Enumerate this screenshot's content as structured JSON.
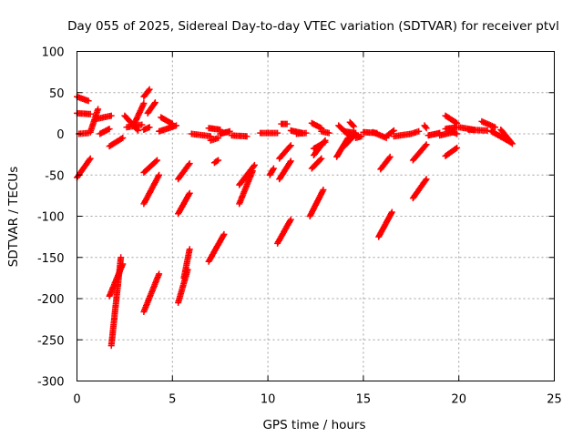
{
  "chart_data": {
    "type": "scatter",
    "title": "Day 055 of 2025, Sidereal Day-to-day VTEC variation (SDTVAR) for receiver ptvl",
    "xlabel": "GPS time / hours",
    "ylabel": "SDTVAR / TECUs",
    "xlim": [
      0,
      25
    ],
    "ylim": [
      -300,
      100
    ],
    "xticks": [
      0,
      5,
      10,
      15,
      20,
      25
    ],
    "yticks": [
      -300,
      -250,
      -200,
      -150,
      -100,
      -50,
      0,
      50,
      100
    ],
    "grid": true,
    "marker": "plus",
    "color": "#ff0000",
    "segments": [
      {
        "x0": 0.0,
        "y0": -53,
        "x1": 0.7,
        "y1": -30
      },
      {
        "x0": 0.0,
        "y0": 45,
        "x1": 0.6,
        "y1": 40
      },
      {
        "x0": 0.0,
        "y0": 25,
        "x1": 0.7,
        "y1": 24
      },
      {
        "x0": 0.1,
        "y0": 0,
        "x1": 0.6,
        "y1": 1
      },
      {
        "x0": 0.7,
        "y0": 2,
        "x1": 1.1,
        "y1": 30
      },
      {
        "x0": 1.0,
        "y0": 18,
        "x1": 1.8,
        "y1": 22
      },
      {
        "x0": 1.2,
        "y0": 0,
        "x1": 1.7,
        "y1": 6
      },
      {
        "x0": 1.7,
        "y0": -15,
        "x1": 2.4,
        "y1": -5
      },
      {
        "x0": 1.7,
        "y0": -197,
        "x1": 2.4,
        "y1": -158
      },
      {
        "x0": 1.8,
        "y0": -257,
        "x1": 2.3,
        "y1": -150
      },
      {
        "x0": 2.5,
        "y0": 22,
        "x1": 3.2,
        "y1": 4
      },
      {
        "x0": 2.6,
        "y0": 8,
        "x1": 3.4,
        "y1": 11
      },
      {
        "x0": 3.0,
        "y0": 12,
        "x1": 3.5,
        "y1": 37
      },
      {
        "x0": 3.5,
        "y0": 45,
        "x1": 3.8,
        "y1": 54
      },
      {
        "x0": 3.5,
        "y0": 5,
        "x1": 3.8,
        "y1": 8
      },
      {
        "x0": 3.5,
        "y0": -216,
        "x1": 4.3,
        "y1": -170
      },
      {
        "x0": 3.5,
        "y0": -85,
        "x1": 4.3,
        "y1": -50
      },
      {
        "x0": 3.5,
        "y0": -47,
        "x1": 4.2,
        "y1": -32
      },
      {
        "x0": 3.7,
        "y0": 25,
        "x1": 4.1,
        "y1": 38
      },
      {
        "x0": 4.3,
        "y0": 3,
        "x1": 5.2,
        "y1": 10
      },
      {
        "x0": 4.4,
        "y0": 20,
        "x1": 5.0,
        "y1": 12
      },
      {
        "x0": 5.3,
        "y0": -205,
        "x1": 5.8,
        "y1": -165
      },
      {
        "x0": 5.6,
        "y0": -175,
        "x1": 5.9,
        "y1": -140
      },
      {
        "x0": 5.3,
        "y0": -97,
        "x1": 5.9,
        "y1": -72
      },
      {
        "x0": 5.3,
        "y0": -55,
        "x1": 5.9,
        "y1": -36
      },
      {
        "x0": 6.0,
        "y0": 0,
        "x1": 7.0,
        "y1": -3
      },
      {
        "x0": 6.9,
        "y0": -155,
        "x1": 7.7,
        "y1": -122
      },
      {
        "x0": 6.9,
        "y0": 7,
        "x1": 7.5,
        "y1": 5
      },
      {
        "x0": 7.0,
        "y0": -8,
        "x1": 7.4,
        "y1": -5
      },
      {
        "x0": 7.2,
        "y0": -35,
        "x1": 7.4,
        "y1": -32
      },
      {
        "x0": 7.5,
        "y0": 0,
        "x1": 8.0,
        "y1": 3
      },
      {
        "x0": 8.1,
        "y0": -2,
        "x1": 8.9,
        "y1": -3
      },
      {
        "x0": 8.5,
        "y0": -85,
        "x1": 9.2,
        "y1": -45
      },
      {
        "x0": 8.5,
        "y0": -62,
        "x1": 9.3,
        "y1": -38
      },
      {
        "x0": 9.6,
        "y0": 1,
        "x1": 10.5,
        "y1": 1
      },
      {
        "x0": 10.1,
        "y0": -50,
        "x1": 10.3,
        "y1": -42
      },
      {
        "x0": 10.5,
        "y0": -133,
        "x1": 11.2,
        "y1": -104
      },
      {
        "x0": 10.6,
        "y0": -55,
        "x1": 11.2,
        "y1": -33
      },
      {
        "x0": 10.6,
        "y0": -30,
        "x1": 11.2,
        "y1": -14
      },
      {
        "x0": 10.7,
        "y0": 12,
        "x1": 11.0,
        "y1": 12
      },
      {
        "x0": 11.2,
        "y0": 4,
        "x1": 11.8,
        "y1": 1
      },
      {
        "x0": 11.5,
        "y0": 0,
        "x1": 12.0,
        "y1": 1
      },
      {
        "x0": 12.2,
        "y0": -100,
        "x1": 12.9,
        "y1": -68
      },
      {
        "x0": 12.3,
        "y0": -42,
        "x1": 12.8,
        "y1": -30
      },
      {
        "x0": 12.3,
        "y0": 13,
        "x1": 12.8,
        "y1": 7
      },
      {
        "x0": 12.4,
        "y0": -26,
        "x1": 13.0,
        "y1": -8
      },
      {
        "x0": 12.4,
        "y0": -18,
        "x1": 13.0,
        "y1": -10
      },
      {
        "x0": 12.8,
        "y0": 3,
        "x1": 13.2,
        "y1": 1
      },
      {
        "x0": 13.6,
        "y0": -28,
        "x1": 14.2,
        "y1": -5
      },
      {
        "x0": 13.7,
        "y0": 10,
        "x1": 14.3,
        "y1": -3
      },
      {
        "x0": 14.0,
        "y0": 3,
        "x1": 14.6,
        "y1": 1
      },
      {
        "x0": 14.0,
        "y0": -15,
        "x1": 14.6,
        "y1": 0
      },
      {
        "x0": 14.3,
        "y0": 14,
        "x1": 14.5,
        "y1": 9
      },
      {
        "x0": 14.6,
        "y0": -5,
        "x1": 14.9,
        "y1": -3
      },
      {
        "x0": 15.0,
        "y0": 2,
        "x1": 15.7,
        "y1": 1
      },
      {
        "x0": 15.5,
        "y0": 2,
        "x1": 16.2,
        "y1": -5
      },
      {
        "x0": 15.8,
        "y0": -125,
        "x1": 16.5,
        "y1": -95
      },
      {
        "x0": 15.9,
        "y0": -43,
        "x1": 16.4,
        "y1": -28
      },
      {
        "x0": 16.2,
        "y0": -3,
        "x1": 16.6,
        "y1": 4
      },
      {
        "x0": 16.6,
        "y0": -3,
        "x1": 17.5,
        "y1": 0
      },
      {
        "x0": 17.5,
        "y0": 0,
        "x1": 17.9,
        "y1": 3
      },
      {
        "x0": 17.6,
        "y0": -78,
        "x1": 18.3,
        "y1": -55
      },
      {
        "x0": 17.6,
        "y0": -32,
        "x1": 18.3,
        "y1": -13
      },
      {
        "x0": 18.2,
        "y0": 10,
        "x1": 18.3,
        "y1": 7
      },
      {
        "x0": 18.4,
        "y0": -2,
        "x1": 19.0,
        "y1": 1
      },
      {
        "x0": 19.0,
        "y0": -2,
        "x1": 19.7,
        "y1": 2
      },
      {
        "x0": 19.3,
        "y0": 22,
        "x1": 19.9,
        "y1": 13
      },
      {
        "x0": 19.3,
        "y0": 6,
        "x1": 19.9,
        "y1": 8
      },
      {
        "x0": 19.3,
        "y0": -27,
        "x1": 19.9,
        "y1": -17
      },
      {
        "x0": 19.6,
        "y0": 3,
        "x1": 19.9,
        "y1": 0
      },
      {
        "x0": 20.0,
        "y0": 8,
        "x1": 20.8,
        "y1": 5
      },
      {
        "x0": 20.5,
        "y0": 5,
        "x1": 21.5,
        "y1": 4
      },
      {
        "x0": 21.2,
        "y0": 15,
        "x1": 21.9,
        "y1": 8
      },
      {
        "x0": 21.7,
        "y0": 3,
        "x1": 22.7,
        "y1": -10
      },
      {
        "x0": 22.2,
        "y0": 5,
        "x1": 22.8,
        "y1": -12
      }
    ]
  }
}
